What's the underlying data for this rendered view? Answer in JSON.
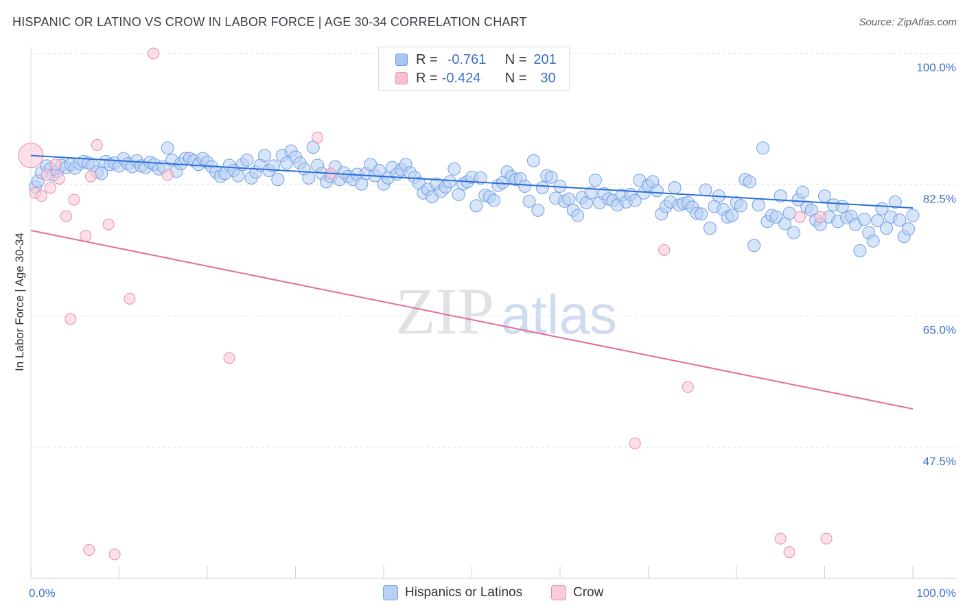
{
  "header": {
    "title": "HISPANIC OR LATINO VS CROW IN LABOR FORCE | AGE 30-34 CORRELATION CHART",
    "source": "Source: ZipAtlas.com"
  },
  "watermark": {
    "part1": "ZIP",
    "part2": "atlas"
  },
  "legend": {
    "rows": [
      {
        "r_label": "R =",
        "r_value": "-0.761",
        "n_label": "N =",
        "n_value": "201",
        "color": "#a9c6f2",
        "stroke": "#6e9de3"
      },
      {
        "r_label": "R =",
        "r_value": "-0.424",
        "n_label": "N =",
        "n_value": "30",
        "color": "#f8c1d3",
        "stroke": "#ee8fae"
      }
    ]
  },
  "colors": {
    "blue_fill": "#b8d0f4",
    "blue_stroke": "#6f9ee4",
    "blue_line": "#2b6fd6",
    "pink_fill": "#f9ccdb",
    "pink_stroke": "#ea8aab",
    "pink_line": "#e36d97",
    "axis_text": "#3b70c8",
    "grid": "#d6d9de"
  },
  "chart_data": {
    "type": "scatter",
    "xlabel": "",
    "ylabel": "In Labor Force | Age 30-34",
    "xlim": [
      0,
      100
    ],
    "ylim": [
      30,
      100
    ],
    "x_tick_labels": [
      "0.0%",
      "100.0%"
    ],
    "y_ticks": [
      47.5,
      65.0,
      82.5,
      100.0
    ],
    "y_tick_labels": [
      "47.5%",
      "65.0%",
      "82.5%",
      "100.0%"
    ],
    "grid": true,
    "legend_position": "top-center",
    "series": [
      {
        "name": "Hispanics or Latinos",
        "color": "#b8d0f4",
        "trend": {
          "x": [
            0,
            100
          ],
          "y": [
            86.4,
            79.4
          ]
        },
        "points": [
          [
            0.5,
            82.2
          ],
          [
            0.8,
            83.0
          ],
          [
            1.2,
            84.1
          ],
          [
            1.8,
            85.0
          ],
          [
            2.2,
            84.6
          ],
          [
            2.5,
            83.8
          ],
          [
            3.0,
            84.3
          ],
          [
            3.5,
            85.1
          ],
          [
            4.0,
            84.8
          ],
          [
            4.5,
            85.2
          ],
          [
            5.0,
            84.7
          ],
          [
            5.5,
            85.3
          ],
          [
            6.0,
            85.6
          ],
          [
            6.5,
            85.4
          ],
          [
            7.0,
            85.1
          ],
          [
            7.5,
            84.2
          ],
          [
            8.0,
            84.0
          ],
          [
            8.5,
            85.6
          ],
          [
            9.0,
            85.2
          ],
          [
            9.5,
            85.4
          ],
          [
            10.0,
            85.0
          ],
          [
            10.5,
            86.0
          ],
          [
            11.0,
            85.3
          ],
          [
            11.5,
            84.9
          ],
          [
            12.0,
            85.7
          ],
          [
            12.5,
            85.0
          ],
          [
            13.0,
            84.8
          ],
          [
            13.5,
            85.5
          ],
          [
            14.0,
            85.2
          ],
          [
            14.5,
            84.6
          ],
          [
            15.0,
            84.9
          ],
          [
            15.5,
            87.4
          ],
          [
            16.0,
            85.8
          ],
          [
            16.5,
            84.3
          ],
          [
            17.0,
            85.3
          ],
          [
            17.5,
            86.0
          ],
          [
            18.0,
            86.0
          ],
          [
            18.5,
            85.7
          ],
          [
            19.0,
            85.2
          ],
          [
            19.5,
            86.0
          ],
          [
            20.0,
            85.5
          ],
          [
            20.5,
            84.9
          ],
          [
            21.0,
            84.2
          ],
          [
            21.5,
            83.6
          ],
          [
            22.0,
            84.0
          ],
          [
            22.5,
            85.1
          ],
          [
            23.0,
            84.4
          ],
          [
            23.5,
            83.7
          ],
          [
            24.0,
            85.2
          ],
          [
            24.5,
            85.8
          ],
          [
            25.0,
            83.4
          ],
          [
            25.5,
            84.2
          ],
          [
            26.0,
            85.1
          ],
          [
            26.5,
            86.4
          ],
          [
            27.0,
            84.4
          ],
          [
            27.5,
            85.0
          ],
          [
            28.0,
            83.2
          ],
          [
            28.5,
            86.4
          ],
          [
            29.0,
            85.4
          ],
          [
            29.5,
            87.0
          ],
          [
            30.0,
            86.2
          ],
          [
            30.5,
            85.4
          ],
          [
            31.0,
            84.6
          ],
          [
            31.5,
            83.4
          ],
          [
            32.0,
            87.5
          ],
          [
            32.5,
            85.1
          ],
          [
            33.0,
            84.0
          ],
          [
            33.5,
            82.9
          ],
          [
            34.0,
            83.6
          ],
          [
            34.5,
            84.9
          ],
          [
            35.0,
            83.2
          ],
          [
            35.5,
            84.1
          ],
          [
            36.0,
            83.6
          ],
          [
            36.5,
            83.2
          ],
          [
            37.0,
            83.9
          ],
          [
            37.5,
            82.6
          ],
          [
            38.0,
            84.0
          ],
          [
            38.5,
            85.2
          ],
          [
            39.0,
            83.7
          ],
          [
            39.5,
            84.4
          ],
          [
            40.0,
            82.6
          ],
          [
            40.5,
            83.4
          ],
          [
            41.0,
            84.8
          ],
          [
            41.5,
            83.9
          ],
          [
            42.0,
            84.5
          ],
          [
            42.5,
            85.2
          ],
          [
            43.0,
            84.1
          ],
          [
            43.5,
            83.5
          ],
          [
            44.0,
            82.7
          ],
          [
            44.5,
            81.4
          ],
          [
            45.0,
            81.9
          ],
          [
            45.5,
            80.9
          ],
          [
            46.0,
            82.6
          ],
          [
            46.5,
            81.6
          ],
          [
            47.0,
            82.2
          ],
          [
            47.5,
            82.9
          ],
          [
            48.0,
            84.6
          ],
          [
            48.5,
            81.2
          ],
          [
            49.0,
            82.6
          ],
          [
            49.5,
            82.9
          ],
          [
            50.0,
            83.5
          ],
          [
            50.5,
            79.7
          ],
          [
            51.0,
            83.4
          ],
          [
            51.5,
            81.1
          ],
          [
            52.0,
            80.9
          ],
          [
            52.5,
            80.4
          ],
          [
            53.0,
            82.4
          ],
          [
            53.5,
            82.8
          ],
          [
            54.0,
            84.2
          ],
          [
            54.5,
            83.6
          ],
          [
            55.0,
            83.2
          ],
          [
            55.5,
            83.3
          ],
          [
            56.0,
            82.3
          ],
          [
            56.5,
            80.3
          ],
          [
            57.0,
            85.7
          ],
          [
            57.5,
            79.1
          ],
          [
            58.0,
            82.1
          ],
          [
            58.5,
            83.7
          ],
          [
            59.0,
            83.5
          ],
          [
            59.5,
            80.7
          ],
          [
            60.0,
            82.3
          ],
          [
            60.5,
            80.3
          ],
          [
            61.0,
            80.6
          ],
          [
            61.5,
            79.1
          ],
          [
            62.0,
            78.4
          ],
          [
            62.5,
            80.8
          ],
          [
            63.0,
            80.1
          ],
          [
            63.5,
            81.4
          ],
          [
            64.0,
            83.1
          ],
          [
            64.5,
            80.1
          ],
          [
            65.0,
            81.3
          ],
          [
            65.5,
            80.6
          ],
          [
            66.0,
            80.4
          ],
          [
            66.5,
            79.8
          ],
          [
            67.0,
            81.1
          ],
          [
            67.5,
            80.2
          ],
          [
            68.0,
            81.2
          ],
          [
            68.5,
            80.4
          ],
          [
            69.0,
            83.1
          ],
          [
            69.5,
            81.4
          ],
          [
            70.0,
            82.4
          ],
          [
            70.5,
            82.9
          ],
          [
            71.0,
            81.7
          ],
          [
            71.5,
            78.6
          ],
          [
            72.0,
            79.6
          ],
          [
            72.5,
            80.2
          ],
          [
            73.0,
            82.1
          ],
          [
            73.5,
            79.8
          ],
          [
            74.0,
            80.0
          ],
          [
            74.5,
            80.1
          ],
          [
            75.0,
            79.5
          ],
          [
            75.5,
            78.7
          ],
          [
            76.0,
            78.6
          ],
          [
            76.5,
            81.8
          ],
          [
            77.0,
            76.7
          ],
          [
            77.5,
            79.6
          ],
          [
            78.0,
            81.0
          ],
          [
            78.5,
            79.2
          ],
          [
            79.0,
            78.2
          ],
          [
            79.5,
            78.4
          ],
          [
            80.0,
            80.1
          ],
          [
            80.5,
            79.7
          ],
          [
            81.0,
            83.2
          ],
          [
            81.5,
            82.9
          ],
          [
            82.0,
            74.4
          ],
          [
            82.5,
            79.8
          ],
          [
            83.0,
            87.4
          ],
          [
            83.5,
            77.6
          ],
          [
            84.0,
            78.4
          ],
          [
            84.5,
            78.2
          ],
          [
            85.0,
            81.0
          ],
          [
            85.5,
            77.3
          ],
          [
            86.0,
            78.7
          ],
          [
            86.5,
            76.1
          ],
          [
            87.0,
            80.5
          ],
          [
            87.5,
            81.5
          ],
          [
            88.0,
            79.5
          ],
          [
            88.5,
            79.1
          ],
          [
            89.0,
            77.8
          ],
          [
            89.5,
            77.2
          ],
          [
            90.0,
            81.0
          ],
          [
            90.5,
            78.2
          ],
          [
            91.0,
            79.8
          ],
          [
            91.5,
            77.6
          ],
          [
            92.0,
            79.6
          ],
          [
            92.5,
            78.1
          ],
          [
            93.0,
            78.3
          ],
          [
            93.5,
            77.2
          ],
          [
            94.0,
            73.7
          ],
          [
            94.5,
            77.9
          ],
          [
            95.0,
            76.1
          ],
          [
            95.5,
            75.0
          ],
          [
            96.0,
            77.7
          ],
          [
            96.5,
            79.3
          ],
          [
            97.0,
            76.7
          ],
          [
            97.5,
            78.2
          ],
          [
            98.0,
            80.2
          ],
          [
            98.5,
            77.8
          ],
          [
            99.0,
            75.6
          ],
          [
            99.5,
            76.6
          ],
          [
            100.0,
            78.4
          ]
        ]
      },
      {
        "name": "Crow",
        "color": "#f9ccdb",
        "trend": {
          "x": [
            0,
            100
          ],
          "y": [
            76.4,
            52.6
          ]
        },
        "points": [
          [
            0.0,
            86.4
          ],
          [
            0.5,
            81.4
          ],
          [
            1.2,
            81.0
          ],
          [
            1.8,
            83.8
          ],
          [
            2.2,
            82.1
          ],
          [
            2.8,
            85.2
          ],
          [
            3.2,
            83.3
          ],
          [
            4.0,
            78.3
          ],
          [
            4.5,
            64.6
          ],
          [
            4.9,
            80.5
          ],
          [
            6.2,
            75.7
          ],
          [
            6.6,
            33.8
          ],
          [
            6.8,
            83.6
          ],
          [
            7.5,
            87.8
          ],
          [
            8.8,
            77.2
          ],
          [
            9.5,
            33.2
          ],
          [
            11.2,
            67.3
          ],
          [
            13.9,
            100.0
          ],
          [
            15.5,
            83.8
          ],
          [
            22.5,
            59.4
          ],
          [
            32.5,
            88.8
          ],
          [
            34.0,
            84.0
          ],
          [
            68.5,
            48.0
          ],
          [
            71.8,
            73.8
          ],
          [
            74.5,
            55.5
          ],
          [
            85.0,
            35.3
          ],
          [
            86.0,
            33.5
          ],
          [
            87.2,
            78.2
          ],
          [
            89.5,
            78.2
          ],
          [
            90.2,
            35.3
          ]
        ]
      }
    ]
  },
  "bottom_legend": {
    "items": [
      {
        "label": "Hispanics or Latinos",
        "color": "#b8d0f4",
        "stroke": "#6f9ee4"
      },
      {
        "label": "Crow",
        "color": "#f9ccdb",
        "stroke": "#ea8aab"
      }
    ]
  }
}
